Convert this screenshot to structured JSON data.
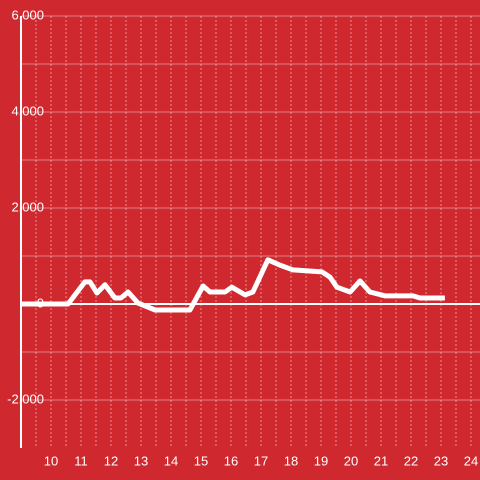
{
  "chart_data": {
    "type": "line",
    "color": "#ffffff",
    "grid": true,
    "x": [
      9.0,
      10.57,
      11.13,
      11.3,
      11.53,
      11.8,
      12.13,
      12.33,
      12.57,
      12.9,
      13.47,
      14.63,
      15.07,
      15.3,
      15.8,
      16.03,
      16.47,
      16.73,
      17.23,
      17.63,
      18.07,
      19.03,
      19.3,
      19.53,
      19.97,
      20.3,
      20.63,
      21.13,
      22.07,
      22.3,
      23.13
    ],
    "values": [
      0,
      0,
      460,
      460,
      230,
      400,
      125,
      125,
      250,
      20,
      -125,
      -125,
      375,
      250,
      250,
      350,
      190,
      250,
      920,
      810,
      710,
      670,
      560,
      350,
      250,
      480,
      250,
      170,
      170,
      125,
      125
    ],
    "xlim": [
      9,
      24.3
    ],
    "xticks": [
      10,
      11,
      12,
      13,
      14,
      15,
      16,
      17,
      18,
      19,
      20,
      21,
      22,
      23,
      24
    ],
    "ylim": [
      -3000,
      6000
    ],
    "yticks": [
      {
        "value": -2000,
        "label": "-2,000"
      },
      0,
      {
        "value": 2000,
        "label": "2,000"
      },
      {
        "value": 4000,
        "label": "4,000"
      },
      {
        "value": 6000,
        "label": "6,000"
      }
    ]
  }
}
